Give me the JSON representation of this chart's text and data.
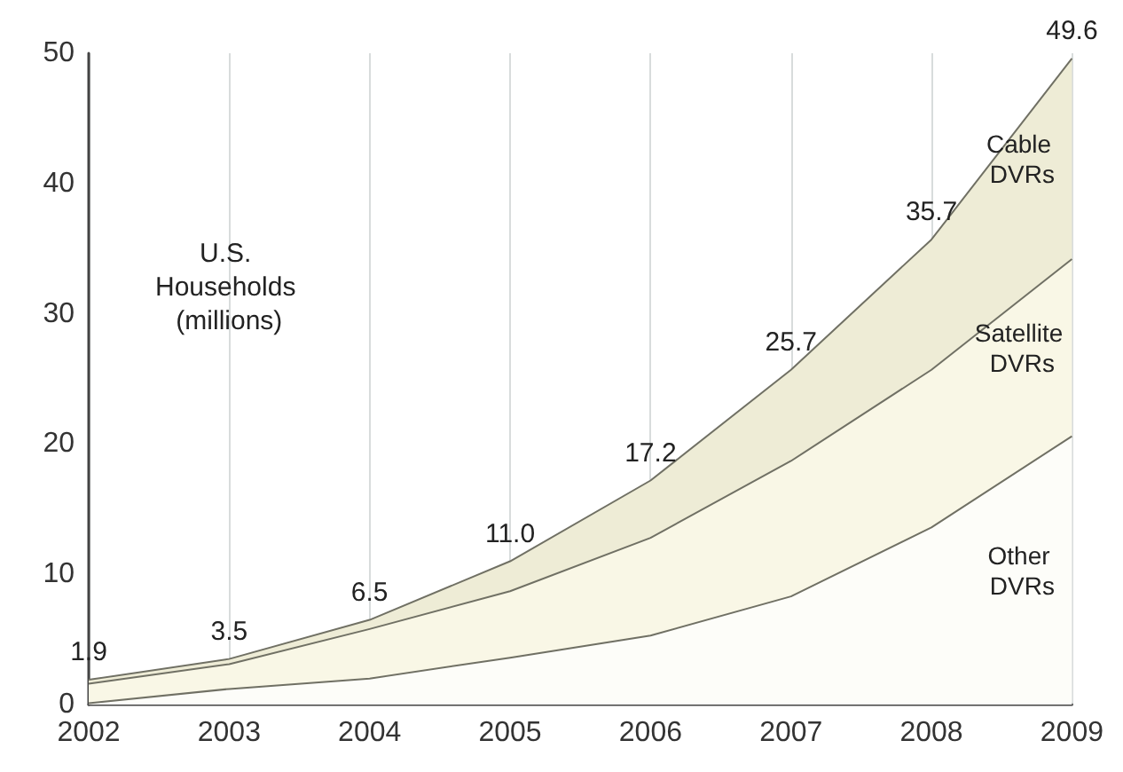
{
  "chart_data": {
    "type": "area",
    "stacked": true,
    "categories": [
      "2002",
      "2003",
      "2004",
      "2005",
      "2006",
      "2007",
      "2008",
      "2009"
    ],
    "series": [
      {
        "name": "Other DVRs",
        "color": "#fdfdf9",
        "values": [
          0.1,
          1.2,
          2.0,
          3.6,
          5.3,
          8.3,
          13.6,
          20.6
        ]
      },
      {
        "name": "Satellite DVRs",
        "color": "#f9f7e6",
        "values": [
          1.5,
          1.9,
          3.8,
          5.1,
          7.5,
          10.4,
          12.1,
          13.6
        ]
      },
      {
        "name": "Cable DVRs",
        "color": "#eeecd6",
        "values": [
          0.3,
          0.4,
          0.7,
          2.3,
          4.4,
          7.0,
          10.0,
          15.4
        ]
      }
    ],
    "totals": [
      "1.9",
      "3.5",
      "6.5",
      "11.0",
      "17.2",
      "25.7",
      "35.7",
      "49.6"
    ],
    "annotations": [
      "U.S. Households (millions)"
    ],
    "ylim": [
      0,
      50
    ],
    "yticks": [
      0,
      10,
      20,
      30,
      40,
      50
    ],
    "grid": "x",
    "marker": "none",
    "legend": false
  }
}
